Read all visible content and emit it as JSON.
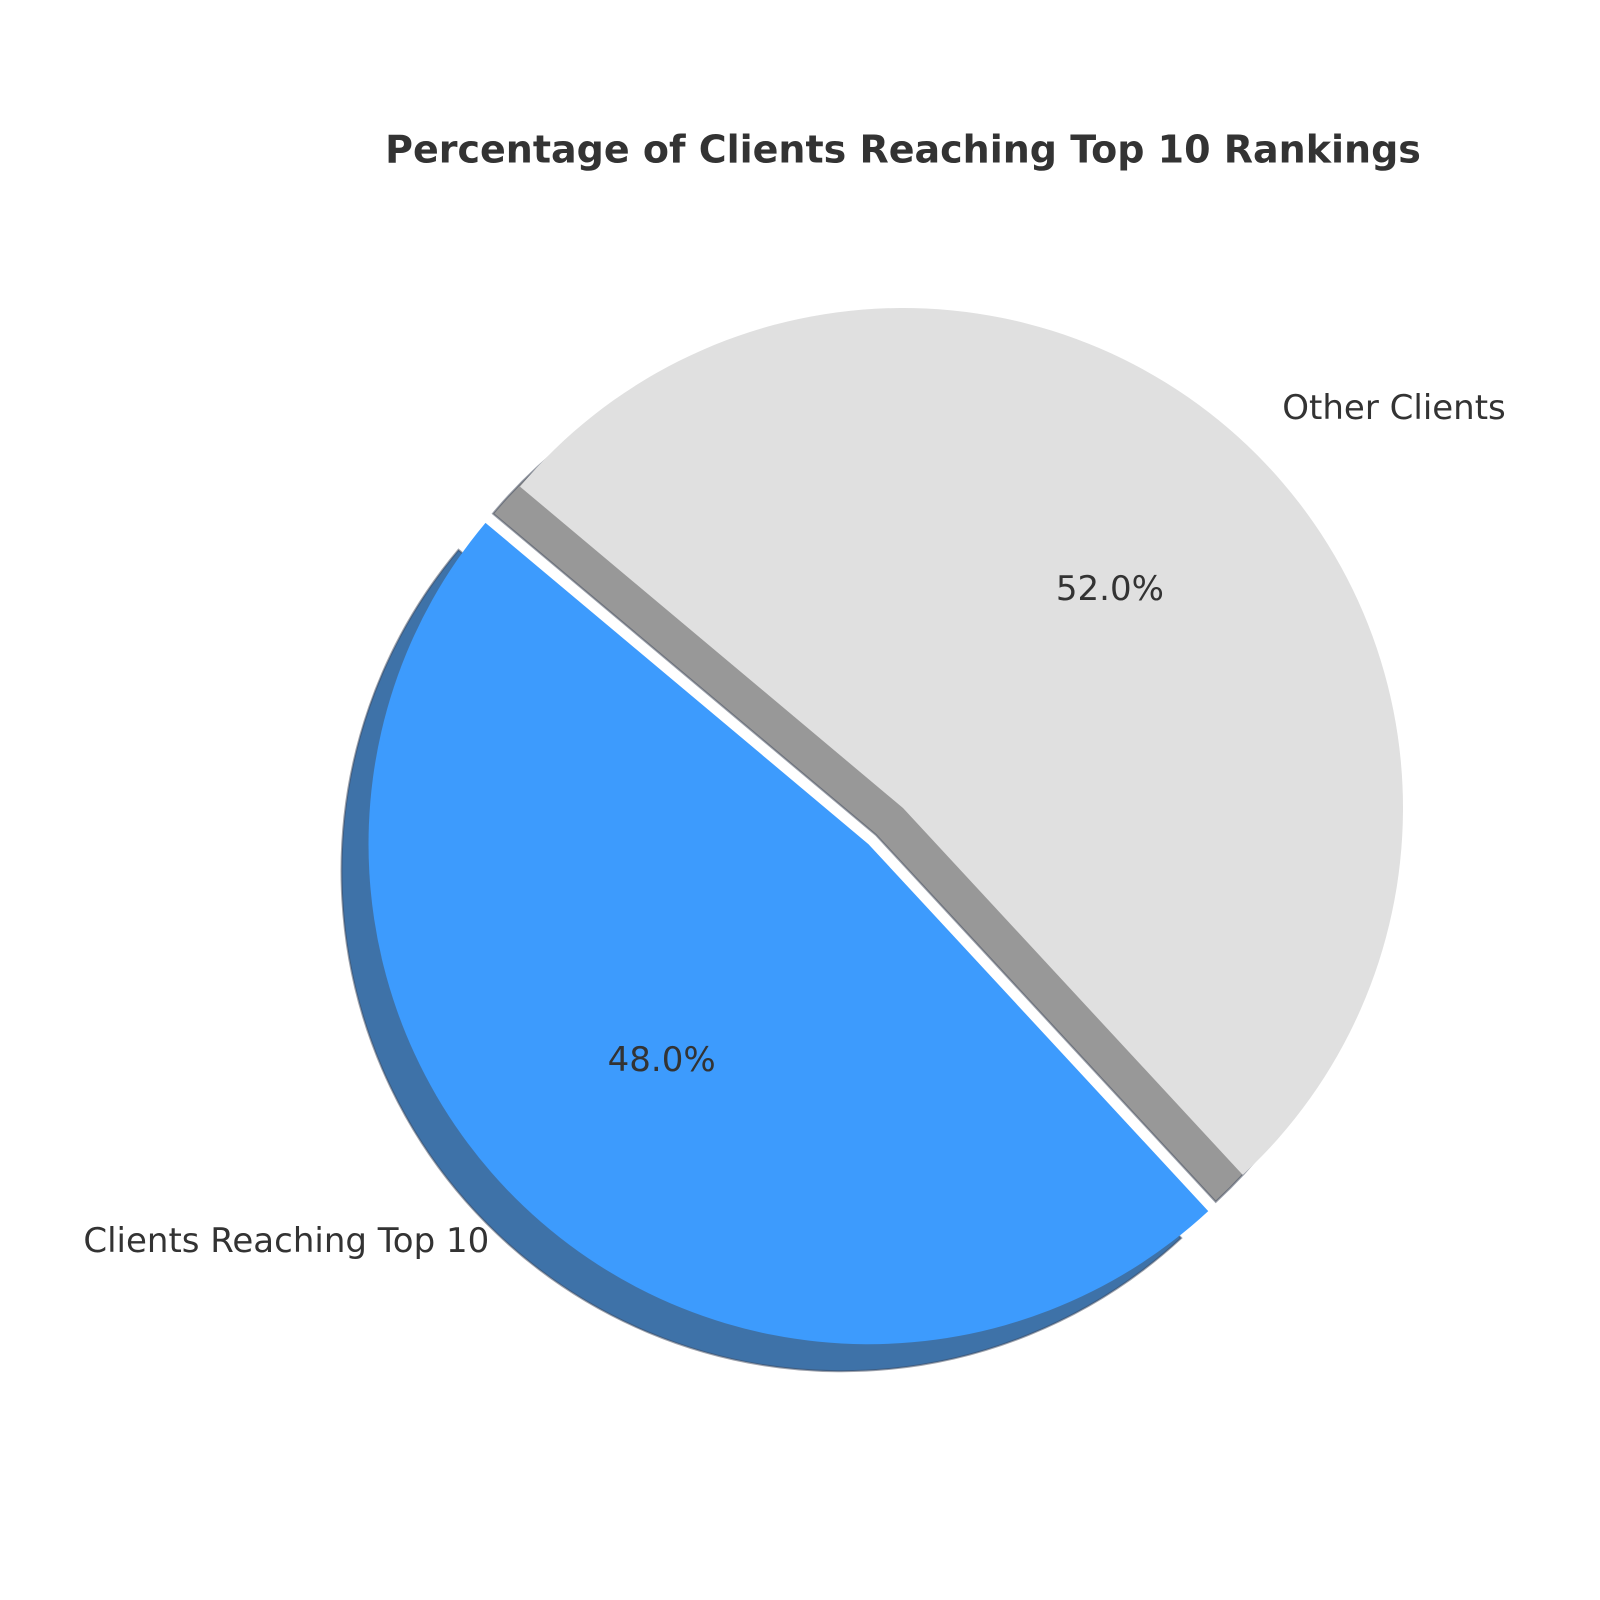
{
  "chart_data": {
    "type": "pie",
    "title": "Percentage of Clients Reaching Top 10 Rankings",
    "categories": [
      "Clients Reaching Top 10",
      "Other Clients"
    ],
    "values": [
      48,
      52
    ],
    "value_labels": [
      "48.0%",
      "52.0%"
    ],
    "colors": [
      "#3d9bfd",
      "#e0e0e0"
    ],
    "start_angle": 140,
    "explode": [
      0.1,
      0
    ],
    "shadow": true
  }
}
